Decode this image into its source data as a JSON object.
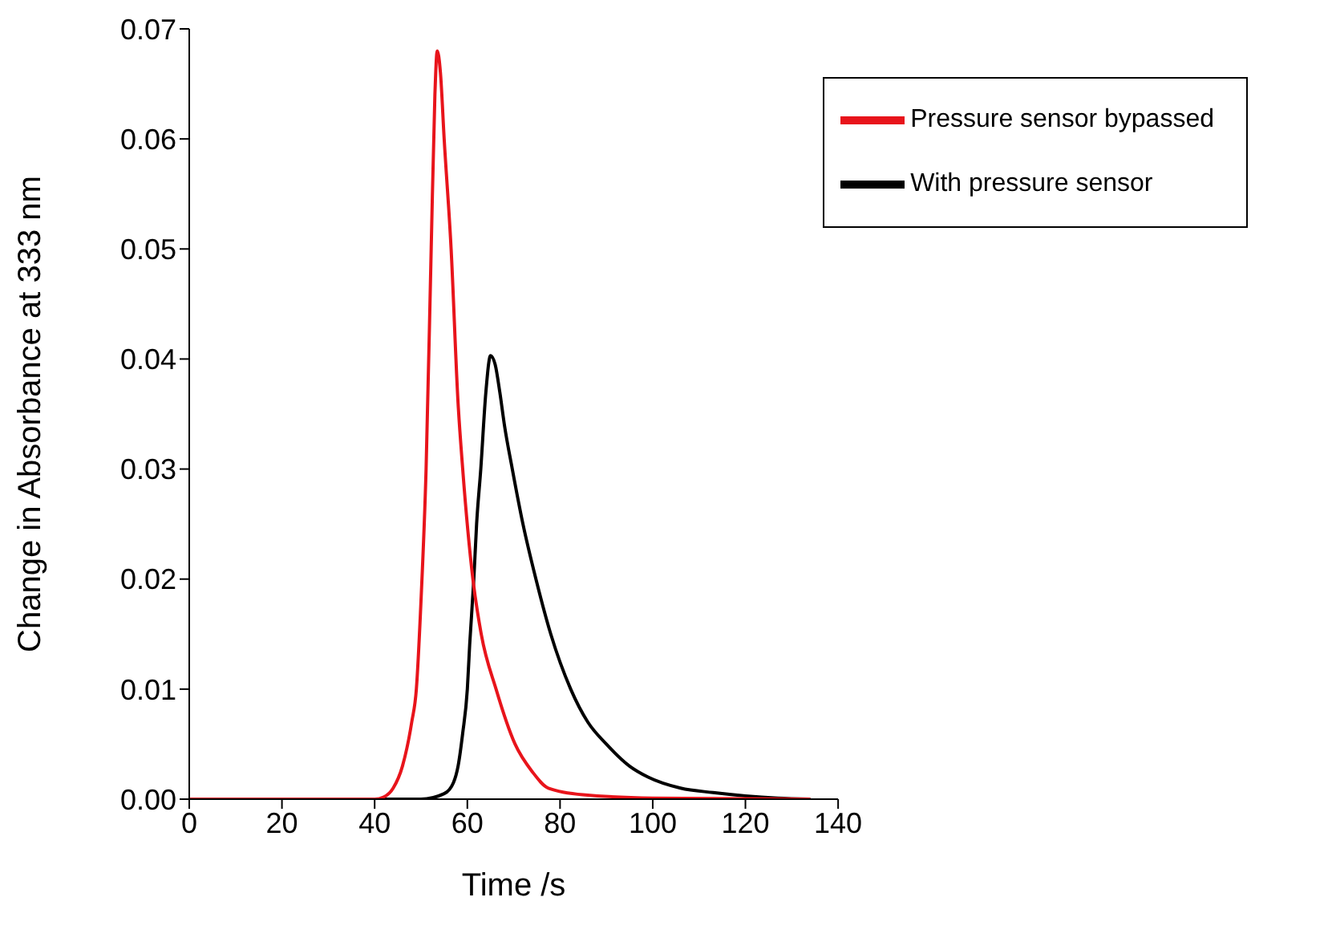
{
  "chart_data": {
    "type": "line",
    "xlabel": "Time /s",
    "ylabel": "Change in Absorbance at 333 nm",
    "xlim": [
      0,
      140
    ],
    "xticks": [
      0,
      20,
      40,
      60,
      80,
      100,
      120,
      140
    ],
    "ylim": [
      0,
      0.07
    ],
    "yticks": [
      {
        "value": 0,
        "label": "0.00"
      },
      0.01,
      0.02,
      0.03,
      0.04,
      0.05,
      0.06,
      0.07
    ],
    "legend": "top right",
    "grid": false,
    "marker": "none",
    "line_style": "solid",
    "series": [
      {
        "name": "With pressure sensor",
        "color": "#000000",
        "x": [
          0,
          20,
          40,
          50,
          55,
          57,
          58,
          59,
          60,
          60.5,
          61.4,
          62,
          62.9,
          64,
          65,
          66,
          67,
          68,
          69.7,
          72,
          74.8,
          78,
          82.3,
          86,
          90,
          95,
          99,
          106,
          113,
          120,
          127,
          134
        ],
        "values": [
          0,
          0,
          0,
          0,
          0.0005,
          0.0015,
          0.003,
          0.006,
          0.01,
          0.014,
          0.02,
          0.025,
          0.03,
          0.037,
          0.0403,
          0.0395,
          0.037,
          0.034,
          0.03,
          0.025,
          0.02,
          0.015,
          0.01,
          0.007,
          0.005,
          0.003,
          0.002,
          0.001,
          0.0006,
          0.0003,
          0.0001,
          0
        ]
      },
      {
        "name": "Pressure sensor bypassed",
        "color": "#e8141b",
        "x": [
          0,
          20,
          40,
          42,
          44,
          46,
          48,
          49,
          50,
          51.1,
          52.2,
          53,
          53.5,
          54.2,
          55,
          56.5,
          58,
          59,
          61.2,
          63,
          66.2,
          70.3,
          74,
          77.5,
          85,
          100,
          134
        ],
        "values": [
          0,
          0,
          0,
          0.0002,
          0.001,
          0.003,
          0.007,
          0.01,
          0.018,
          0.03,
          0.05,
          0.064,
          0.068,
          0.066,
          0.06,
          0.05,
          0.036,
          0.03,
          0.02,
          0.015,
          0.01,
          0.005,
          0.0025,
          0.001,
          0.0004,
          0.0001,
          0
        ]
      }
    ]
  }
}
